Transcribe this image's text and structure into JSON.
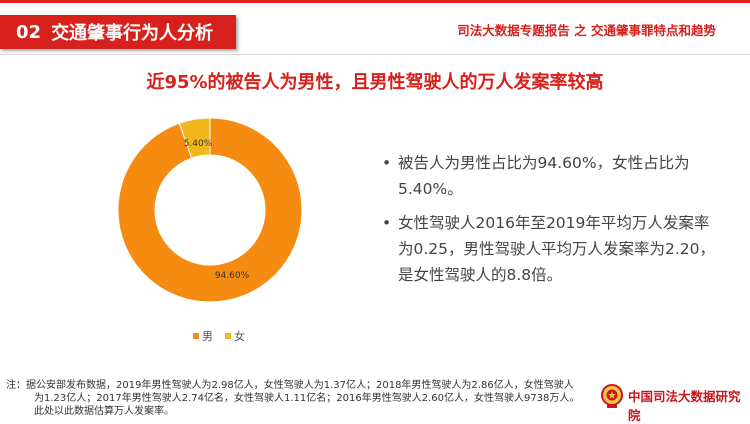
{
  "header": {
    "section_number": "02",
    "section_title": "交通肇事行为人分析",
    "report_title": "司法大数据专题报告 之 交通肇事罪特点和趋势"
  },
  "headline": "近95%的被告人为男性，且男性驾驶人的万人发案率较高",
  "chart_data": {
    "type": "pie",
    "donut": true,
    "categories": [
      "男",
      "女"
    ],
    "values": [
      94.6,
      5.4
    ],
    "data_labels": [
      "94.60%",
      "5.40%"
    ],
    "colors": [
      "#f68b12",
      "#f2b81b"
    ],
    "title": "",
    "legend": {
      "placement": "bottom",
      "entries": [
        "男",
        "女"
      ]
    }
  },
  "bullets": [
    "被告人为男性占比为94.60%，女性占比为5.40%。",
    "女性驾驶人2016年至2019年平均万人发案率为0.25，男性驾驶人平均万人发案率为2.20，是女性驾驶人的8.8倍。"
  ],
  "footnote": {
    "line1": "注：据公安部发布数据，2019年男性驾驶人为2.98亿人，女性驾驶人为1.37亿人；2018年男性驾驶人为2.86亿人，女性驾驶人",
    "line2": "为1.23亿人；2017年男性驾驶人2.74亿名，女性驾驶人1.11亿名；2016年男性驾驶人2.60亿人，女性驾驶人9738万人。",
    "line3": "此处以此数据估算万人发案率。"
  },
  "organization": "中国司法大数据研究院",
  "colors": {
    "accent": "#d7211c",
    "male": "#f68b12",
    "female": "#f2b81b"
  }
}
